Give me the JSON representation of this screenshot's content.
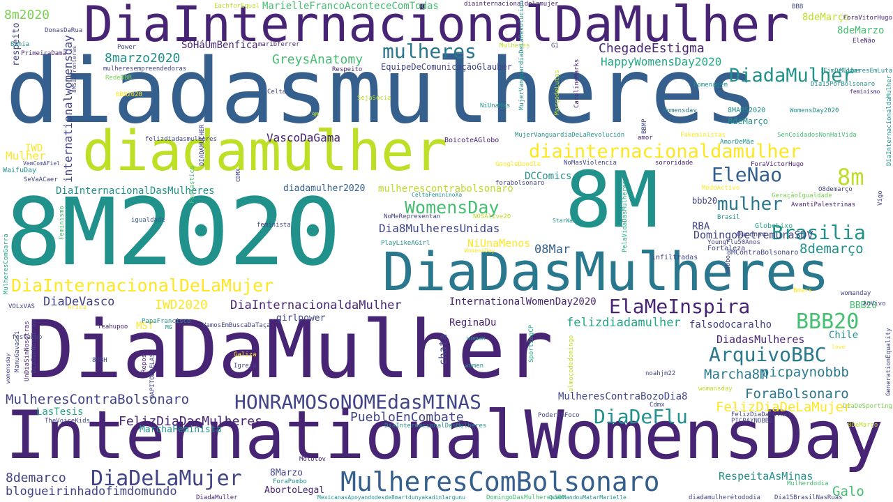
{
  "palette": {
    "c1": "#440154",
    "c2": "#482475",
    "c3": "#414487",
    "c4": "#355f8d",
    "c5": "#2a788e",
    "c6": "#21918c",
    "c7": "#22a884",
    "c8": "#44bf70",
    "c9": "#7ad151",
    "c10": "#bddf26",
    "c11": "#fde725"
  },
  "words": [
    {
      "text": "DiaDaMulher",
      "c": "c2"
    },
    {
      "text": "diadasmulheres",
      "c": "c4"
    },
    {
      "text": "InternationalWomensDay",
      "c": "c2"
    },
    {
      "text": "8M2020",
      "c": "c6"
    },
    {
      "text": "8M",
      "c": "c6"
    },
    {
      "text": "DiaInternacionalDaMulher",
      "c": "c2"
    },
    {
      "text": "diadamulher",
      "c": "c10"
    },
    {
      "text": "DiaDasMulheres",
      "c": "c5"
    },
    {
      "text": "MulheresComBolsonaro",
      "c": "c4"
    },
    {
      "text": "HONRAMOSoNOMEdasMINAS",
      "c": "c3"
    },
    {
      "text": "DiaDeLaMujer",
      "c": "c3"
    },
    {
      "text": "diainternacionaldamulher",
      "c": "c11"
    },
    {
      "text": "DiaInternacionalDeLaMujer",
      "c": "c11"
    },
    {
      "text": "mulheres",
      "c": "c5"
    },
    {
      "text": "WomensDay",
      "c": "c8"
    },
    {
      "text": "ArquivoBBC",
      "c": "c5"
    },
    {
      "text": "Brasilia",
      "c": "c6"
    },
    {
      "text": "DiadaMulher",
      "c": "c6"
    },
    {
      "text": "EleNao",
      "c": "c4"
    },
    {
      "text": "8m",
      "c": "c10"
    },
    {
      "text": "mulher",
      "c": "c5"
    },
    {
      "text": "BBB20",
      "c": "c8"
    },
    {
      "text": "DiaDeFlu",
      "c": "c6"
    },
    {
      "text": "ElaMeInspira",
      "c": "c2"
    },
    {
      "text": "8demarço",
      "c": "c6"
    },
    {
      "text": "picpaynobbb",
      "c": "c5"
    },
    {
      "text": "Marcha8M",
      "c": "c5"
    },
    {
      "text": "ForaBolsonaro",
      "c": "c5"
    },
    {
      "text": "FelizDiaDeLaMujer",
      "c": "c11"
    },
    {
      "text": "Galo",
      "c": "c8"
    },
    {
      "text": "MulheresContraBolsonaro",
      "c": "c3"
    },
    {
      "text": "FelizDiaDasMulheres",
      "c": "c2"
    },
    {
      "text": "PuebloEnCombate",
      "c": "c3"
    },
    {
      "text": "IWD2020",
      "c": "c11"
    },
    {
      "text": "DiaInternacionaldaMulher",
      "c": "c2"
    },
    {
      "text": "DiaDeVasco",
      "c": "c3"
    },
    {
      "text": "8demarco",
      "c": "c3"
    },
    {
      "text": "blogueirinhadofimdomundo",
      "c": "c3"
    },
    {
      "text": "GreysAnatomy",
      "c": "c8"
    },
    {
      "text": "8marzo2020",
      "c": "c6"
    },
    {
      "text": "ChegadeEstigma",
      "c": "c2"
    },
    {
      "text": "HappyWomensDay2020",
      "c": "c7"
    },
    {
      "text": "8m2020",
      "c": "c9"
    },
    {
      "text": "Dia8MulheresUnidas",
      "c": "c3"
    },
    {
      "text": "08Mar",
      "c": "c4"
    },
    {
      "text": "felizdiadamulher",
      "c": "c7"
    },
    {
      "text": "InternationalWomenDay2020",
      "c": "c2"
    },
    {
      "text": "internationalwomensday",
      "c": "c3"
    },
    {
      "text": "VascoDaGama",
      "c": "c2"
    },
    {
      "text": "NiUnaMenos",
      "c": "c11"
    },
    {
      "text": "DiadasMulheres",
      "c": "c2"
    },
    {
      "text": "ReginaDu",
      "c": "c2"
    },
    {
      "text": "MulheresContraBozoDia8",
      "c": "c3"
    },
    {
      "text": "RespeitaAsMinas",
      "c": "c6"
    },
    {
      "text": "DomingoDetremuraSDV",
      "c": "c3"
    },
    {
      "text": "mulherescontrabolsonaro",
      "c": "c10"
    },
    {
      "text": "DiaInternacionalDasMulheres",
      "c": "c6"
    },
    {
      "text": "diadamulher2020",
      "c": "c4"
    },
    {
      "text": "DCComics",
      "c": "c6"
    },
    {
      "text": "LasTesis",
      "c": "c7"
    },
    {
      "text": "MarchaFeminista",
      "c": "c6"
    },
    {
      "text": "falsodocaralho",
      "c": "c3"
    },
    {
      "text": "Chile",
      "c": "c6"
    },
    {
      "text": "Mulher",
      "c": "c11"
    },
    {
      "text": "SóHáUmBenfica",
      "c": "c2"
    },
    {
      "text": "8deMarço",
      "c": "c10"
    },
    {
      "text": "8deMarzo",
      "c": "c8"
    },
    {
      "text": "MarielleFrancoAconteceComTodas",
      "c": "c8"
    },
    {
      "text": "EquipeDeComunicaçãoGlauber",
      "c": "c3"
    },
    {
      "text": "MST",
      "c": "c11"
    },
    {
      "text": "chata",
      "c": "c3"
    },
    {
      "text": "girlpower",
      "c": "c3"
    },
    {
      "text": "AbortoLegal",
      "c": "c2"
    },
    {
      "text": "8Marzo",
      "c": "c3"
    },
    {
      "text": "RBA",
      "c": "c3"
    },
    {
      "text": "bbb20",
      "c": "c3"
    },
    {
      "text": "IWD",
      "c": "c11"
    },
    {
      "text": "respeito",
      "c": "c3"
    },
    {
      "text": "BBB20",
      "c": "c8"
    },
    {
      "text": "8deMarço",
      "c": "c6"
    },
    {
      "text": "8MARS2020",
      "c": "c6"
    },
    {
      "text": "WomensDay2020",
      "c": "c6"
    },
    {
      "text": "Womensday",
      "c": "c5"
    },
    {
      "text": "amor",
      "c": "c2"
    },
    {
      "text": "Fakeministas",
      "c": "c11"
    },
    {
      "text": "SenCoidadosNonHaiVida",
      "c": "c8"
    },
    {
      "text": "BoicoteAGlobo",
      "c": "c2"
    },
    {
      "text": "MujerVanguardiaDeLaRevolución",
      "c": "c6"
    },
    {
      "text": "AmorDeMãe",
      "c": "c6"
    },
    {
      "text": "sororidade",
      "c": "c2"
    },
    {
      "text": "ForaVictorHugo",
      "c": "c2"
    },
    {
      "text": "NoMasViolencia",
      "c": "c3"
    },
    {
      "text": "GoogleDoodle",
      "c": "c11"
    },
    {
      "text": "forabolsonaro",
      "c": "c3"
    },
    {
      "text": "CeltaFemininoXa",
      "c": "c6"
    },
    {
      "text": "NoMeRepresentan",
      "c": "c3"
    },
    {
      "text": "NOSAlive20",
      "c": "c10"
    },
    {
      "text": "PlayLikeAGirl",
      "c": "c6"
    },
    {
      "text": "WomensDay",
      "c": "c11"
    },
    {
      "text": "StarWars",
      "c": "c6"
    },
    {
      "text": "infiltradas",
      "c": "c3"
    },
    {
      "text": "Fortaleza",
      "c": "c3"
    },
    {
      "text": "8MContraBolsonaro",
      "c": "c3"
    },
    {
      "text": "YoungFlu50Anos",
      "c": "c3"
    },
    {
      "text": "Ourense",
      "c": "c3"
    },
    {
      "text": "GloboLixo",
      "c": "c7"
    },
    {
      "text": "Brasil",
      "c": "c6"
    },
    {
      "text": "AvantiPalestrinas",
      "c": "c2"
    },
    {
      "text": "GeraçãoIgualdade",
      "c": "c9"
    },
    {
      "text": "O8demarço",
      "c": "c3"
    },
    {
      "text": "ModoActivo",
      "c": "c11"
    },
    {
      "text": "Vigo",
      "c": "c3"
    },
    {
      "text": "feminista",
      "c": "c3"
    },
    {
      "text": "igualdade",
      "c": "c4"
    },
    {
      "text": "Feminismo",
      "c": "c8"
    },
    {
      "text": "Fantastico",
      "c": "c8"
    },
    {
      "text": "WaifuDay",
      "c": "c6"
    },
    {
      "text": "SeVaACaer",
      "c": "c3"
    },
    {
      "text": "VemComAFiel",
      "c": "c3"
    },
    {
      "text": "MulheresComGarra",
      "c": "c7"
    },
    {
      "text": "festabbb",
      "c": "c3"
    },
    {
      "text": "VOLxVAS",
      "c": "c3"
    },
    {
      "text": "Arica",
      "c": "c11"
    },
    {
      "text": "PapaFrancisco",
      "c": "c6"
    },
    {
      "text": "MG",
      "c": "c6"
    },
    {
      "text": "Teahupoo",
      "c": "c2"
    },
    {
      "text": "VamosEmBuscaDaTaça",
      "c": "c3"
    },
    {
      "text": "DiaSinNosotras",
      "c": "c3"
    },
    {
      "text": "ManuGavassi",
      "c": "c3"
    },
    {
      "text": "8MBH",
      "c": "c3"
    },
    {
      "text": "UnDiaSinNosotras",
      "c": "c2"
    },
    {
      "text": "womensday",
      "c": "c3"
    },
    {
      "text": "Repost",
      "c": "c2"
    },
    {
      "text": "OAPITOÉDELAS",
      "c": "c3"
    },
    {
      "text": "Galiza",
      "c": "c11"
    },
    {
      "text": "Igreja",
      "c": "c3"
    },
    {
      "text": "woman",
      "c": "c6"
    },
    {
      "text": "women",
      "c": "c6"
    },
    {
      "text": "SportingCP",
      "c": "c7"
    },
    {
      "text": "almoçodedomingo",
      "c": "c10"
    },
    {
      "text": "noahjm22",
      "c": "c3"
    },
    {
      "text": "womansday",
      "c": "c10"
    },
    {
      "text": "Cdmx",
      "c": "c3"
    },
    {
      "text": "TheVoiceKids",
      "c": "c3"
    },
    {
      "text": "PoderEmFoco",
      "c": "c3"
    },
    {
      "text": "DiaInternacionalDasMulheres",
      "c": "c6"
    },
    {
      "text": "FelizDiaDaMulher",
      "c": "c3"
    },
    {
      "text": "PICPAYNOBBB",
      "c": "c3"
    },
    {
      "text": "8DeMarço",
      "c": "c10"
    },
    {
      "text": "DiaDeSporting",
      "c": "c9"
    },
    {
      "text": "GenerationEquality",
      "c": "c3"
    },
    {
      "text": "love",
      "c": "c11"
    },
    {
      "text": "Molotov",
      "c": "c2"
    },
    {
      "text": "ForaPombo",
      "c": "c6"
    },
    {
      "text": "DiadaMuller",
      "c": "c2"
    },
    {
      "text": "MexicanasApoyandodesde8martdunyakadinlargunu",
      "c": "c6"
    },
    {
      "text": "DomingoDasMulheresSDV",
      "c": "c8"
    },
    {
      "text": "QuemMandouMatarMarielle",
      "c": "c6"
    },
    {
      "text": "diadamulherétododia",
      "c": "c3"
    },
    {
      "text": "Dia15BrasilNasRuas",
      "c": "c3"
    },
    {
      "text": "Mulherdodia",
      "c": "c8"
    },
    {
      "text": "AoVivo",
      "c": "c3"
    },
    {
      "text": "womanday",
      "c": "c3"
    },
    {
      "text": "Bmars",
      "c": "c11"
    },
    {
      "text": "Habbo",
      "c": "c3"
    },
    {
      "text": "PelaVidaDasMulheres",
      "c": "c7"
    },
    {
      "text": "DiaInternacionaldaMulher",
      "c": "c6"
    },
    {
      "text": "FimDeTodas",
      "c": "c6"
    },
    {
      "text": "MulheresEmLuta",
      "c": "c6"
    },
    {
      "text": "Dia15PorBolsonaro",
      "c": "c6"
    },
    {
      "text": "feminismo",
      "c": "c2"
    },
    {
      "text": "EleNão",
      "c": "c2"
    },
    {
      "text": "ForaVitorHugo",
      "c": "c2"
    },
    {
      "text": "BBB",
      "c": "c3"
    },
    {
      "text": "DonasDaRua",
      "c": "c3"
    },
    {
      "text": "Bahia",
      "c": "c6"
    },
    {
      "text": "PrimeiraDama",
      "c": "c2"
    },
    {
      "text": "Power",
      "c": "c3"
    },
    {
      "text": "EachforEqual",
      "c": "c10"
    },
    {
      "text": "diainternacionaldelamujer",
      "c": "c2"
    },
    {
      "text": "maribferrer",
      "c": "c2"
    },
    {
      "text": "Mulheres",
      "c": "c10"
    },
    {
      "text": "G1",
      "c": "c3"
    },
    {
      "text": "MujerVanguardiaDeLaRevolucion",
      "c": "c6"
    },
    {
      "text": "mulheresempreendedoras",
      "c": "c3"
    },
    {
      "text": "8MSinFronteras",
      "c": "c3"
    },
    {
      "text": "Respeito",
      "c": "c2"
    },
    {
      "text": "RedeBBB",
      "c": "c9"
    },
    {
      "text": "BBB2020",
      "c": "c11"
    },
    {
      "text": "Celta",
      "c": "c3"
    },
    {
      "text": "SejaSócia",
      "c": "c10"
    },
    {
      "text": "9M",
      "c": "c10"
    },
    {
      "text": "NiUnaMas",
      "c": "c6"
    },
    {
      "text": "felizdiadasmulheres",
      "c": "c3"
    },
    {
      "text": "DIADAMULHER",
      "c": "c3"
    },
    {
      "text": "CDMX",
      "c": "c3"
    },
    {
      "text": "MarçodeLutas",
      "c": "c10"
    },
    {
      "text": "CarolineMarks",
      "c": "c2"
    },
    {
      "text": "BBMP",
      "c": "c3"
    },
    {
      "text": "homenagem",
      "c": "c6"
    }
  ]
}
